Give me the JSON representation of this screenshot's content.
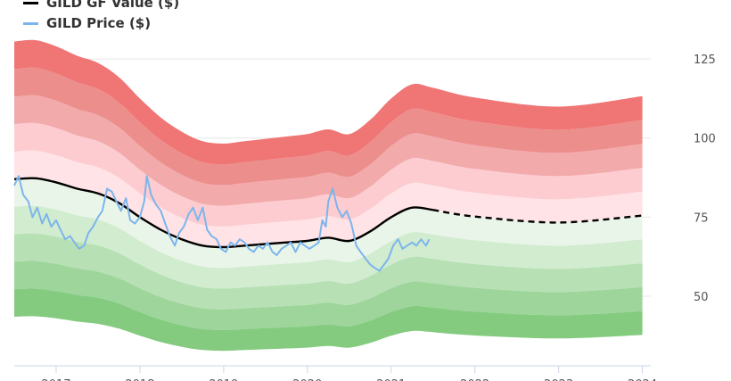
{
  "chart_data": {
    "type": "area",
    "legend": [
      {
        "label": "GILD GF Value ($)",
        "color": "#000000"
      },
      {
        "label": "GILD Price ($)",
        "color": "#7cb5ec"
      }
    ],
    "xlim": [
      2016.5,
      2024.1
    ],
    "ylim": [
      28,
      138
    ],
    "yticks": [
      "50",
      "75",
      "100",
      "125"
    ],
    "xticks": [
      "2017",
      "2018",
      "2019",
      "2020",
      "2021",
      "2022",
      "2023",
      "2024"
    ],
    "gf_value": {
      "name": "GILD GF Value ($)",
      "x": [
        "2016-07-01",
        "2016-10-01",
        "2017-01-01",
        "2017-04-01",
        "2017-07-01",
        "2017-10-01",
        "2018-01-01",
        "2018-04-01",
        "2018-07-01",
        "2018-10-01",
        "2019-01-01",
        "2019-04-01",
        "2019-07-01",
        "2019-10-01",
        "2020-01-01",
        "2020-04-01",
        "2020-07-01",
        "2020-10-01",
        "2021-01-01",
        "2021-04-01",
        "2021-06-30"
      ],
      "values": [
        87.0,
        87.3,
        86.0,
        84.0,
        82.5,
        79.5,
        75.0,
        71.0,
        68.0,
        66.0,
        65.5,
        66.0,
        66.5,
        67.0,
        67.5,
        68.5,
        67.5,
        70.5,
        75.0,
        78.0,
        77.3
      ]
    },
    "gf_projection": {
      "x": [
        "2021-06-30",
        "2022-01-01",
        "2023-01-01",
        "2024-01-01"
      ],
      "values": [
        77.3,
        75.2,
        73.3,
        75.5
      ]
    },
    "price": {
      "name": "GILD Price ($)",
      "x": [
        "2016-07-01",
        "2016-07-20",
        "2016-08-10",
        "2016-09-01",
        "2016-09-20",
        "2016-10-10",
        "2016-11-01",
        "2016-11-20",
        "2016-12-10",
        "2017-01-01",
        "2017-01-20",
        "2017-02-10",
        "2017-03-01",
        "2017-03-20",
        "2017-04-10",
        "2017-05-01",
        "2017-05-20",
        "2017-06-10",
        "2017-07-01",
        "2017-07-20",
        "2017-08-10",
        "2017-09-01",
        "2017-09-20",
        "2017-10-10",
        "2017-11-01",
        "2017-11-20",
        "2017-12-10",
        "2018-01-01",
        "2018-01-20",
        "2018-02-01",
        "2018-02-20",
        "2018-03-10",
        "2018-04-01",
        "2018-04-20",
        "2018-05-10",
        "2018-06-01",
        "2018-06-20",
        "2018-07-10",
        "2018-08-01",
        "2018-08-20",
        "2018-09-10",
        "2018-10-01",
        "2018-10-20",
        "2018-11-10",
        "2018-12-01",
        "2018-12-20",
        "2019-01-10",
        "2019-02-01",
        "2019-02-20",
        "2019-03-10",
        "2019-04-01",
        "2019-04-20",
        "2019-05-10",
        "2019-06-01",
        "2019-06-20",
        "2019-07-10",
        "2019-08-01",
        "2019-08-20",
        "2019-09-10",
        "2019-10-01",
        "2019-10-20",
        "2019-11-10",
        "2019-12-01",
        "2019-12-20",
        "2020-01-10",
        "2020-02-01",
        "2020-02-20",
        "2020-03-05",
        "2020-03-20",
        "2020-04-01",
        "2020-04-20",
        "2020-05-10",
        "2020-06-01",
        "2020-06-20",
        "2020-07-10",
        "2020-08-01",
        "2020-08-20",
        "2020-09-10",
        "2020-10-01",
        "2020-10-20",
        "2020-11-10",
        "2020-12-01",
        "2020-12-20",
        "2021-01-10",
        "2021-02-01",
        "2021-02-20",
        "2021-03-10",
        "2021-04-01",
        "2021-04-20",
        "2021-05-10",
        "2021-06-01",
        "2021-06-15"
      ],
      "values": [
        85,
        88,
        82,
        80,
        75,
        78,
        73,
        76,
        72,
        74,
        71,
        68,
        69,
        67,
        65,
        66,
        70,
        72,
        75,
        77,
        84,
        83,
        80,
        77,
        81,
        74,
        73,
        75,
        80,
        88,
        82,
        79,
        77,
        73,
        69,
        66,
        70,
        72,
        76,
        78,
        74,
        78,
        71,
        69,
        68,
        65,
        64,
        67,
        66,
        68,
        67,
        65,
        64,
        66,
        65,
        67,
        64,
        63,
        65,
        66,
        67,
        64,
        67,
        66,
        65,
        66,
        67,
        74,
        72,
        80,
        84,
        78,
        75,
        77,
        73,
        66,
        64,
        62,
        60,
        59,
        58,
        60,
        62,
        66,
        68,
        65,
        66,
        67,
        66,
        68,
        66,
        68
      ]
    },
    "bands": {
      "upper_multipliers": [
        1.1,
        1.2,
        1.3,
        1.4,
        1.5
      ],
      "lower_multipliers": [
        0.9,
        0.8,
        0.7,
        0.6,
        0.5
      ],
      "upper_colors": [
        "#ffe3e6",
        "#fdccd1",
        "#f2aaab",
        "#ec8e8c",
        "#f07575"
      ],
      "lower_colors": [
        "#eaf5e9",
        "#d2ecd0",
        "#b7e0b4",
        "#9dd59a",
        "#84cb80"
      ]
    },
    "grid": true,
    "legend_position": "top-left"
  }
}
